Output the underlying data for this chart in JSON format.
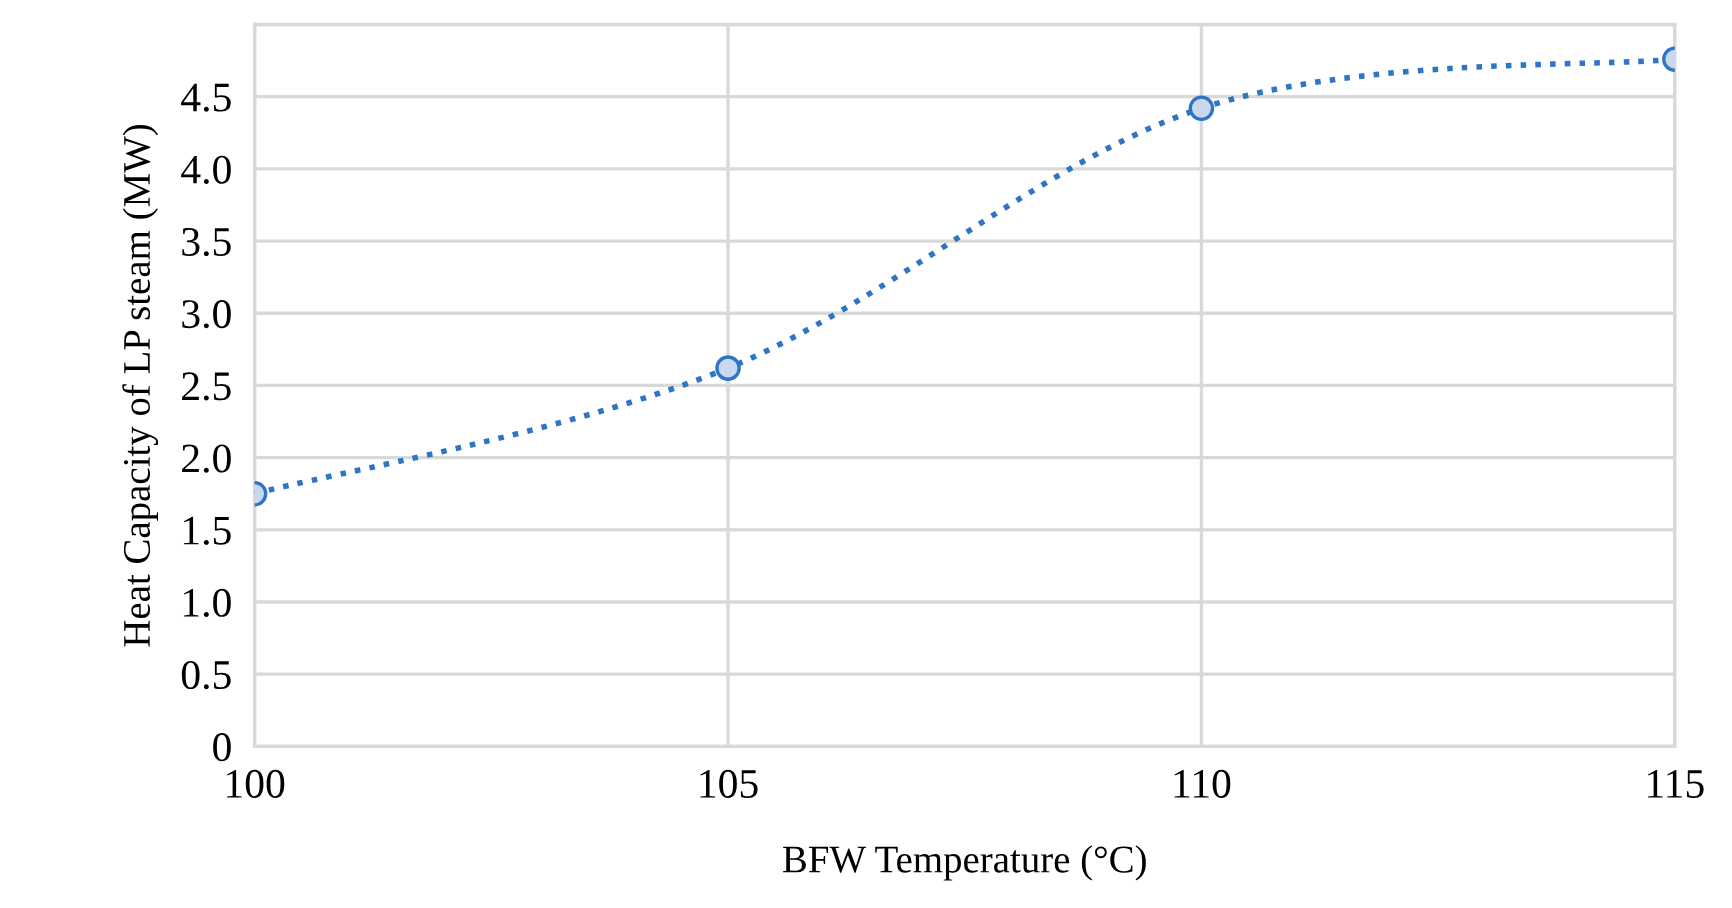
{
  "chart_data": {
    "type": "line",
    "xlabel": "BFW Temperature (°C)",
    "ylabel": "Heat Capacity of LP steam (MW)",
    "x": [
      100,
      105,
      110,
      115
    ],
    "series": [
      {
        "color": "#2e75c6",
        "values": [
          1.75,
          2.62,
          4.42,
          4.76
        ]
      }
    ],
    "xlim": [
      100,
      115
    ],
    "xticks": [
      100,
      105,
      110,
      115
    ],
    "ylim": [
      0,
      5
    ],
    "yticks": [
      0,
      0.5,
      {
        "value": 1,
        "label": "1.0"
      },
      1.5,
      {
        "value": 2,
        "label": "2.0"
      },
      2.5,
      {
        "value": 3,
        "label": "3.0"
      },
      3.5,
      {
        "value": 4,
        "label": "4.0"
      },
      4.5,
      {
        "value": 5,
        "label": null
      }
    ],
    "grid": true,
    "marker": "circle",
    "line_style": "dotted"
  }
}
